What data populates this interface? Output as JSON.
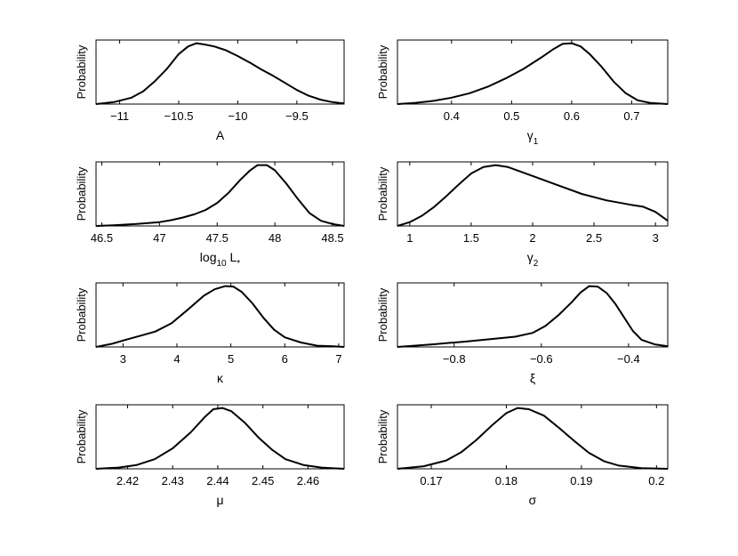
{
  "chart_data": [
    {
      "type": "line",
      "ylabel": "Probability",
      "xlabel": "A",
      "xlim": [
        -11.2,
        -9.1
      ],
      "xticks": [
        -11,
        -10.5,
        -10,
        -9.5
      ],
      "xtick_labels": [
        "−11",
        "−10.5",
        "−10",
        "−9.5"
      ],
      "x": [
        -11.2,
        -11.05,
        -10.9,
        -10.8,
        -10.7,
        -10.6,
        -10.5,
        -10.42,
        -10.35,
        -10.28,
        -10.2,
        -10.1,
        -10.0,
        -9.9,
        -9.8,
        -9.7,
        -9.6,
        -9.5,
        -9.4,
        -9.3,
        -9.2,
        -9.1
      ],
      "y": [
        0.0,
        0.03,
        0.1,
        0.2,
        0.36,
        0.55,
        0.78,
        0.9,
        0.95,
        0.93,
        0.9,
        0.84,
        0.75,
        0.65,
        0.54,
        0.44,
        0.33,
        0.22,
        0.13,
        0.07,
        0.03,
        0.01
      ]
    },
    {
      "type": "line",
      "ylabel": "Probability",
      "xlabel": "γ",
      "xlabel_sub": "1",
      "xlim": [
        0.31,
        0.76
      ],
      "xticks": [
        0.4,
        0.5,
        0.6,
        0.7
      ],
      "xtick_labels": [
        "0.4",
        "0.5",
        "0.6",
        "0.7"
      ],
      "x": [
        0.31,
        0.34,
        0.37,
        0.4,
        0.43,
        0.46,
        0.49,
        0.52,
        0.55,
        0.57,
        0.585,
        0.6,
        0.615,
        0.63,
        0.65,
        0.67,
        0.69,
        0.71,
        0.73,
        0.76
      ],
      "y": [
        0.0,
        0.02,
        0.05,
        0.1,
        0.17,
        0.27,
        0.4,
        0.55,
        0.73,
        0.86,
        0.94,
        0.95,
        0.9,
        0.78,
        0.58,
        0.35,
        0.17,
        0.06,
        0.02,
        0.0
      ]
    },
    {
      "type": "line",
      "ylabel": "Probability",
      "xlabel": "log",
      "xlabel_sub": "10",
      "xlabel_tail": " L",
      "xlabel_tail_sub": "*",
      "xlim": [
        46.45,
        48.6
      ],
      "xticks": [
        46.5,
        47,
        47.5,
        48,
        48.5
      ],
      "xtick_labels": [
        "46.5",
        "47",
        "47.5",
        "48",
        "48.5"
      ],
      "x": [
        46.45,
        46.6,
        46.8,
        47.0,
        47.1,
        47.2,
        47.3,
        47.4,
        47.5,
        47.6,
        47.7,
        47.78,
        47.85,
        47.93,
        48.0,
        48.1,
        48.2,
        48.3,
        48.4,
        48.5,
        48.6
      ],
      "y": [
        0.0,
        0.01,
        0.03,
        0.06,
        0.09,
        0.13,
        0.18,
        0.25,
        0.36,
        0.52,
        0.72,
        0.86,
        0.95,
        0.95,
        0.87,
        0.66,
        0.42,
        0.2,
        0.08,
        0.03,
        0.0
      ]
    },
    {
      "type": "line",
      "ylabel": "Probability",
      "xlabel": "γ",
      "xlabel_sub": "2",
      "xlim": [
        0.9,
        3.1
      ],
      "xticks": [
        1,
        1.5,
        2,
        2.5,
        3
      ],
      "xtick_labels": [
        "1",
        "1.5",
        "2",
        "2.5",
        "3"
      ],
      "x": [
        0.9,
        1.0,
        1.1,
        1.2,
        1.3,
        1.4,
        1.5,
        1.6,
        1.7,
        1.8,
        1.9,
        2.0,
        2.2,
        2.4,
        2.6,
        2.8,
        2.9,
        3.0,
        3.1
      ],
      "y": [
        0.0,
        0.06,
        0.16,
        0.3,
        0.47,
        0.65,
        0.82,
        0.92,
        0.95,
        0.92,
        0.85,
        0.78,
        0.64,
        0.5,
        0.4,
        0.33,
        0.3,
        0.22,
        0.08
      ]
    },
    {
      "type": "line",
      "ylabel": "Probability",
      "xlabel": "κ",
      "xlim": [
        2.5,
        7.1
      ],
      "xticks": [
        3,
        4,
        5,
        6,
        7
      ],
      "xtick_labels": [
        "3",
        "4",
        "5",
        "6",
        "7"
      ],
      "x": [
        2.5,
        2.8,
        3.0,
        3.3,
        3.6,
        3.9,
        4.2,
        4.5,
        4.7,
        4.9,
        5.05,
        5.2,
        5.4,
        5.6,
        5.8,
        6.0,
        6.3,
        6.6,
        6.9,
        7.1
      ],
      "y": [
        0.0,
        0.05,
        0.1,
        0.17,
        0.24,
        0.37,
        0.58,
        0.8,
        0.9,
        0.95,
        0.94,
        0.86,
        0.68,
        0.46,
        0.27,
        0.15,
        0.07,
        0.02,
        0.01,
        0.0
      ]
    },
    {
      "type": "line",
      "ylabel": "Probability",
      "xlabel": "ξ",
      "xlim": [
        -0.93,
        -0.31
      ],
      "xticks": [
        -0.8,
        -0.6,
        -0.4
      ],
      "xtick_labels": [
        "−0.8",
        "−0.6",
        "−0.4"
      ],
      "x": [
        -0.93,
        -0.85,
        -0.78,
        -0.72,
        -0.66,
        -0.62,
        -0.59,
        -0.56,
        -0.53,
        -0.51,
        -0.49,
        -0.47,
        -0.45,
        -0.43,
        -0.41,
        -0.39,
        -0.37,
        -0.34,
        -0.31
      ],
      "y": [
        0.0,
        0.04,
        0.08,
        0.12,
        0.16,
        0.22,
        0.33,
        0.5,
        0.7,
        0.85,
        0.95,
        0.94,
        0.84,
        0.67,
        0.46,
        0.25,
        0.11,
        0.04,
        0.01
      ]
    },
    {
      "type": "line",
      "ylabel": "Probability",
      "xlabel": "μ",
      "xlim": [
        2.413,
        2.468
      ],
      "xticks": [
        2.42,
        2.43,
        2.44,
        2.45,
        2.46
      ],
      "xtick_labels": [
        "2.42",
        "2.43",
        "2.44",
        "2.45",
        "2.46"
      ],
      "x": [
        2.413,
        2.418,
        2.422,
        2.426,
        2.43,
        2.434,
        2.437,
        2.439,
        2.441,
        2.443,
        2.446,
        2.449,
        2.452,
        2.455,
        2.459,
        2.463,
        2.468
      ],
      "y": [
        0.0,
        0.02,
        0.06,
        0.15,
        0.32,
        0.57,
        0.8,
        0.93,
        0.95,
        0.9,
        0.72,
        0.49,
        0.3,
        0.15,
        0.06,
        0.02,
        0.0
      ]
    },
    {
      "type": "line",
      "ylabel": "Probability",
      "xlabel": "σ",
      "xlim": [
        0.1655,
        0.2015
      ],
      "xticks": [
        0.17,
        0.18,
        0.19,
        0.2
      ],
      "xtick_labels": [
        "0.17",
        "0.18",
        "0.19",
        "0.2"
      ],
      "x": [
        0.1655,
        0.169,
        0.172,
        0.174,
        0.176,
        0.178,
        0.18,
        0.1815,
        0.183,
        0.185,
        0.187,
        0.189,
        0.191,
        0.193,
        0.195,
        0.198,
        0.2015
      ],
      "y": [
        0.0,
        0.04,
        0.13,
        0.26,
        0.45,
        0.67,
        0.87,
        0.95,
        0.93,
        0.83,
        0.64,
        0.44,
        0.25,
        0.12,
        0.05,
        0.01,
        0.0
      ]
    }
  ]
}
